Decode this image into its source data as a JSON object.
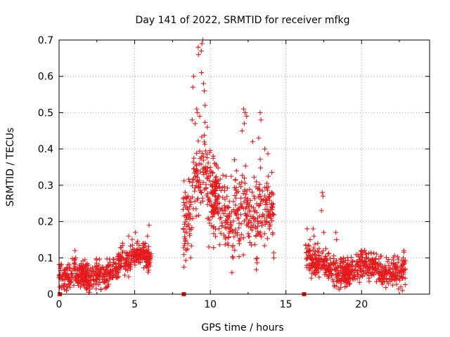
{
  "chart_data": {
    "type": "scatter",
    "title": "Day 141 of 2022, SRMTID for receiver mfkg",
    "xlabel": "GPS time / hours",
    "ylabel": "SRMTID / TECUs",
    "xlim": [
      0,
      24.5
    ],
    "ylim": [
      0,
      0.7
    ],
    "xticks": [
      0,
      5,
      10,
      15,
      20
    ],
    "yticks": [
      0,
      0.1,
      0.2,
      0.3,
      0.4,
      0.5,
      0.6,
      0.7
    ],
    "grid": true,
    "marker": "+",
    "color": "#e41a1c",
    "zero_markers": [
      0.05,
      8.25,
      16.2
    ],
    "series": [
      {
        "name": "SRMTID",
        "segments": [
          {
            "start_hour": 0.0,
            "end_hour": 6.1,
            "x": [
              0.0,
              0.2,
              0.4,
              0.6,
              0.8,
              1.0,
              1.2,
              1.4,
              1.6,
              1.8,
              2.0,
              2.2,
              2.4,
              2.6,
              2.8,
              3.0,
              3.2,
              3.4,
              3.6,
              3.8,
              4.0,
              4.2,
              4.4,
              4.6,
              4.8,
              5.0,
              5.2,
              5.4,
              5.6,
              5.8,
              6.0
            ],
            "y": [
              0.06,
              0.05,
              0.04,
              0.05,
              0.05,
              0.07,
              0.05,
              0.05,
              0.06,
              0.05,
              0.04,
              0.05,
              0.05,
              0.06,
              0.05,
              0.05,
              0.06,
              0.06,
              0.07,
              0.07,
              0.09,
              0.09,
              0.09,
              0.09,
              0.11,
              0.1,
              0.11,
              0.1,
              0.11,
              0.1,
              0.1
            ],
            "spread": 0.022,
            "outliers": [
              [
                1.05,
                0.12
              ],
              [
                1.1,
                0.1
              ],
              [
                4.2,
                0.14
              ],
              [
                4.6,
                0.16
              ],
              [
                5.05,
                0.17
              ],
              [
                5.15,
                0.14
              ],
              [
                5.55,
                0.14
              ],
              [
                5.7,
                0.14
              ],
              [
                5.95,
                0.19
              ],
              [
                5.85,
                0.16
              ],
              [
                0.05,
                0.02
              ],
              [
                0.5,
                0.01
              ]
            ]
          },
          {
            "start_hour": 8.2,
            "end_hour": 14.2,
            "x": [
              8.2,
              8.4,
              8.6,
              8.8,
              9.0,
              9.2,
              9.4,
              9.6,
              9.8,
              10.0,
              10.2,
              10.4,
              10.6,
              10.8,
              11.0,
              11.2,
              11.4,
              11.6,
              11.8,
              12.0,
              12.2,
              12.4,
              12.6,
              12.8,
              13.0,
              13.2,
              13.4,
              13.6,
              13.8,
              14.0,
              14.2
            ],
            "y": [
              0.18,
              0.2,
              0.22,
              0.26,
              0.3,
              0.32,
              0.34,
              0.36,
              0.3,
              0.28,
              0.26,
              0.27,
              0.26,
              0.24,
              0.22,
              0.21,
              0.2,
              0.22,
              0.2,
              0.24,
              0.26,
              0.24,
              0.2,
              0.2,
              0.22,
              0.24,
              0.24,
              0.23,
              0.25,
              0.24,
              0.22
            ],
            "spread": 0.07,
            "outliers": [
              [
                9.2,
                0.68
              ],
              [
                9.22,
                0.66
              ],
              [
                9.4,
                0.67
              ],
              [
                9.45,
                0.69
              ],
              [
                9.5,
                0.7
              ],
              [
                9.42,
                0.61
              ],
              [
                8.9,
                0.6
              ],
              [
                8.85,
                0.57
              ],
              [
                9.55,
                0.58
              ],
              [
                9.6,
                0.56
              ],
              [
                9.1,
                0.51
              ],
              [
                9.15,
                0.5
              ],
              [
                9.65,
                0.52
              ],
              [
                9.3,
                0.49
              ],
              [
                12.2,
                0.51
              ],
              [
                12.3,
                0.5
              ],
              [
                12.4,
                0.49
              ],
              [
                12.25,
                0.47
              ],
              [
                13.3,
                0.5
              ],
              [
                13.35,
                0.48
              ],
              [
                12.1,
                0.45
              ],
              [
                9.8,
                0.46
              ],
              [
                8.8,
                0.48
              ],
              [
                9.0,
                0.47
              ],
              [
                10.2,
                0.38
              ],
              [
                11.6,
                0.37
              ],
              [
                13.6,
                0.4
              ],
              [
                12.8,
                0.42
              ],
              [
                13.2,
                0.43
              ],
              [
                14.2,
                0.1
              ],
              [
                9.9,
                0.13
              ],
              [
                8.7,
                0.1
              ],
              [
                11.5,
                0.1
              ]
            ]
          },
          {
            "start_hour": 16.3,
            "end_hour": 22.9,
            "x": [
              16.3,
              16.5,
              16.7,
              16.9,
              17.1,
              17.3,
              17.5,
              17.7,
              17.9,
              18.1,
              18.3,
              18.5,
              18.7,
              18.9,
              19.1,
              19.3,
              19.5,
              19.7,
              19.9,
              20.1,
              20.3,
              20.5,
              20.7,
              20.9,
              21.1,
              21.3,
              21.5,
              21.7,
              21.9,
              22.1,
              22.3,
              22.5,
              22.7,
              22.9
            ],
            "y": [
              0.1,
              0.1,
              0.09,
              0.09,
              0.08,
              0.09,
              0.09,
              0.08,
              0.07,
              0.07,
              0.06,
              0.06,
              0.06,
              0.06,
              0.06,
              0.06,
              0.06,
              0.07,
              0.07,
              0.08,
              0.08,
              0.08,
              0.08,
              0.07,
              0.07,
              0.06,
              0.05,
              0.06,
              0.05,
              0.06,
              0.06,
              0.06,
              0.07,
              0.07
            ],
            "spread": 0.024,
            "outliers": [
              [
                17.4,
                0.28
              ],
              [
                17.45,
                0.27
              ],
              [
                17.35,
                0.23
              ],
              [
                17.5,
                0.17
              ],
              [
                16.8,
                0.18
              ],
              [
                16.85,
                0.16
              ],
              [
                16.4,
                0.18
              ],
              [
                18.3,
                0.17
              ],
              [
                18.35,
                0.15
              ],
              [
                17.1,
                0.14
              ],
              [
                20.0,
                0.12
              ],
              [
                20.3,
                0.11
              ],
              [
                21.0,
                0.11
              ],
              [
                22.8,
                0.12
              ],
              [
                16.6,
                0.15
              ],
              [
                18.1,
                0.04
              ],
              [
                18.9,
                0.02
              ],
              [
                22.6,
                0.02
              ],
              [
                22.7,
                0.01
              ]
            ]
          }
        ]
      }
    ]
  }
}
